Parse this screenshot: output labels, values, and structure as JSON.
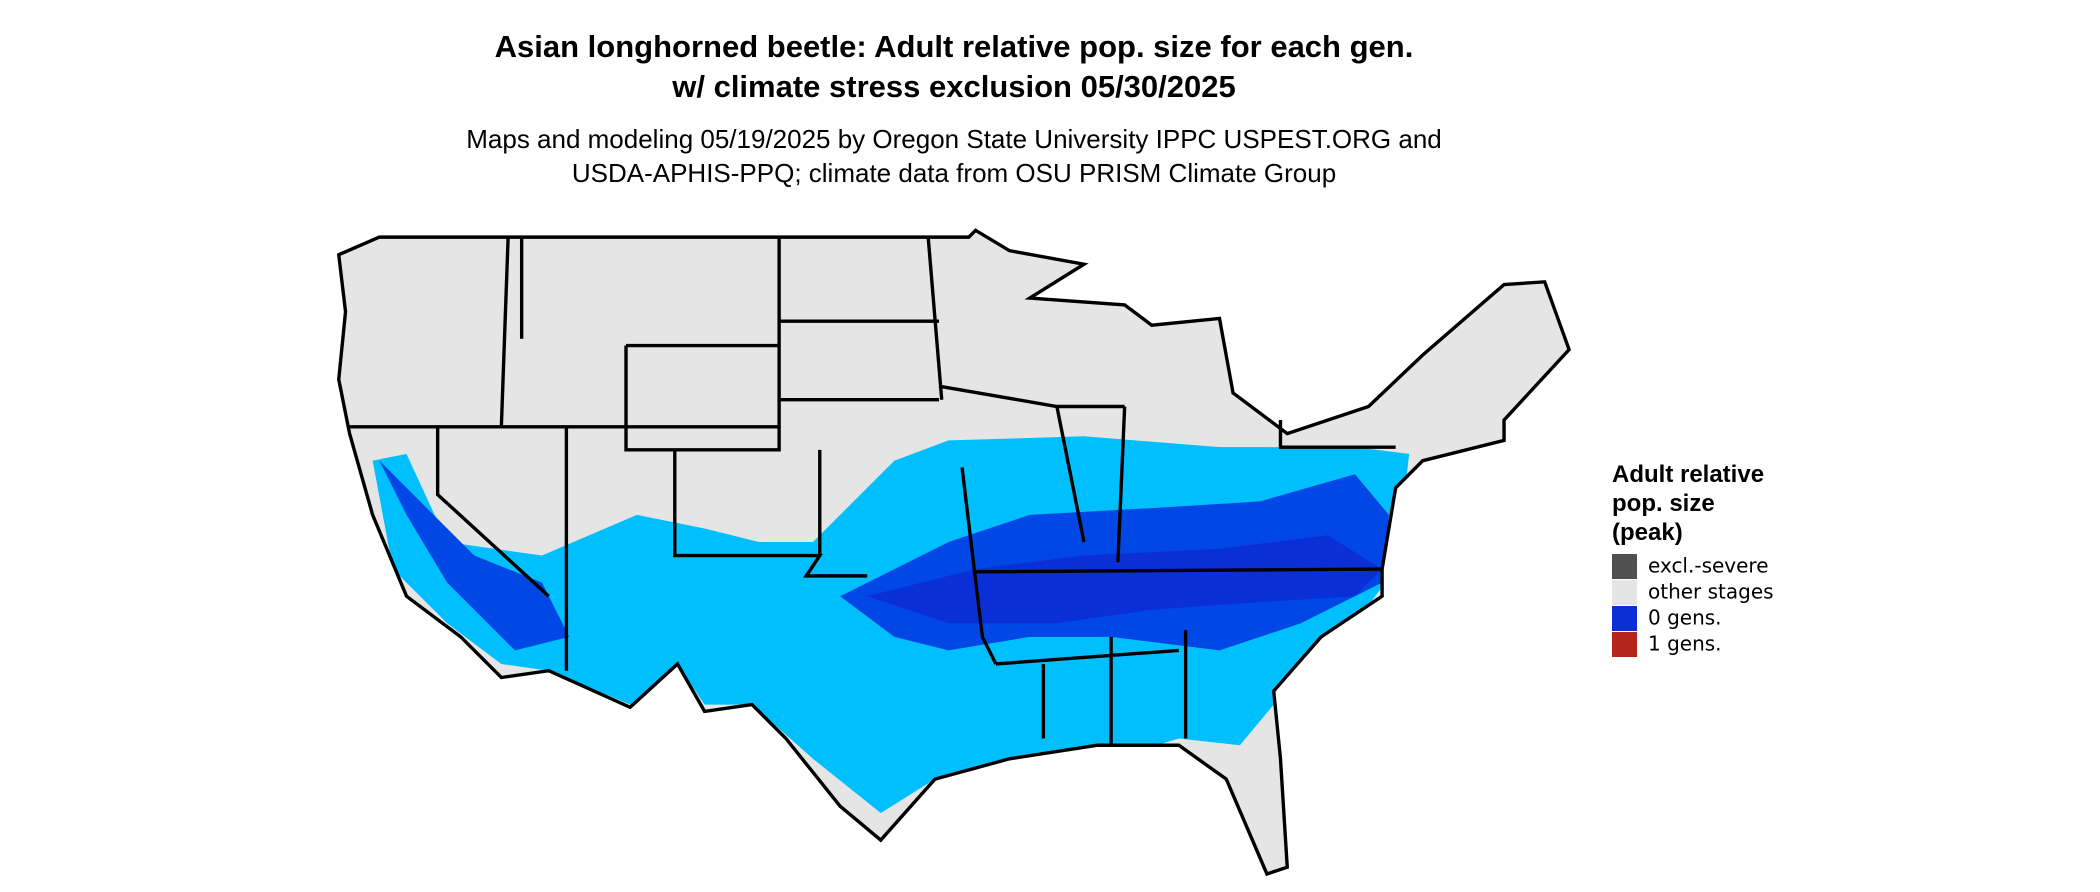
{
  "title": [
    "Asian longhorned beetle: Adult relative pop. size for each gen.",
    "w/ climate stress exclusion 05/30/2025"
  ],
  "subtitle": [
    "Maps and modeling 05/19/2025 by Oregon State University IPPC USPEST.ORG and",
    "USDA-APHIS-PPQ; climate data from OSU PRISM Climate Group"
  ],
  "legend": {
    "title": [
      "Adult relative",
      "pop. size",
      "(peak)"
    ],
    "items": [
      {
        "label": "excl.-severe",
        "color": "#505050"
      },
      {
        "label": "other stages",
        "color": "#e5e5e5"
      },
      {
        "label": "0 gens.",
        "color": "#0a2fd6"
      },
      {
        "label": "1 gens.",
        "color": "#b2271a"
      }
    ]
  }
}
